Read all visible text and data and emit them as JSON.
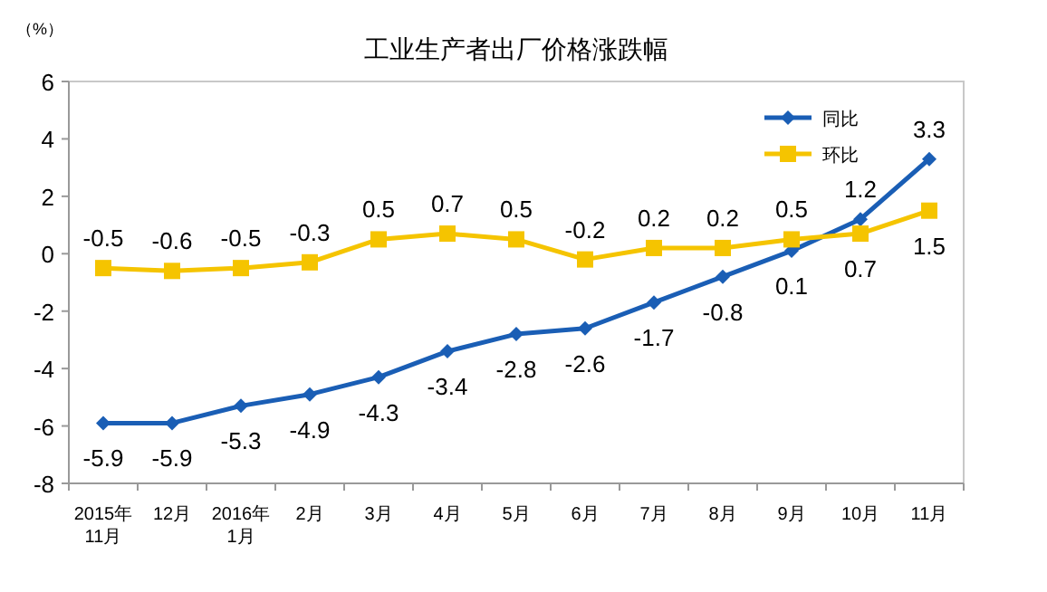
{
  "chart_data": {
    "type": "line",
    "title": "工业生产者出厂价格涨跌幅",
    "ylabel": "（%）",
    "categories": [
      "2015年\n11月",
      "12月",
      "2016年\n1月",
      "2月",
      "3月",
      "4月",
      "5月",
      "6月",
      "7月",
      "8月",
      "9月",
      "10月",
      "11月"
    ],
    "series": [
      {
        "name": "同比",
        "color": "#1a5eb5",
        "marker": "diamond",
        "values": [
          -5.9,
          -5.9,
          -5.3,
          -4.9,
          -4.3,
          -3.4,
          -2.8,
          -2.6,
          -1.7,
          -0.8,
          0.1,
          1.2,
          3.3
        ]
      },
      {
        "name": "环比",
        "color": "#f5c400",
        "marker": "square",
        "values": [
          -0.5,
          -0.6,
          -0.5,
          -0.3,
          0.5,
          0.7,
          0.5,
          -0.2,
          0.2,
          0.2,
          0.5,
          0.7,
          1.5
        ]
      }
    ],
    "ylim": [
      -8,
      6
    ],
    "yticks": [
      -8,
      -6,
      -4,
      -2,
      0,
      2,
      4,
      6
    ],
    "grid": false,
    "legend": "top right",
    "data_labels": true
  }
}
